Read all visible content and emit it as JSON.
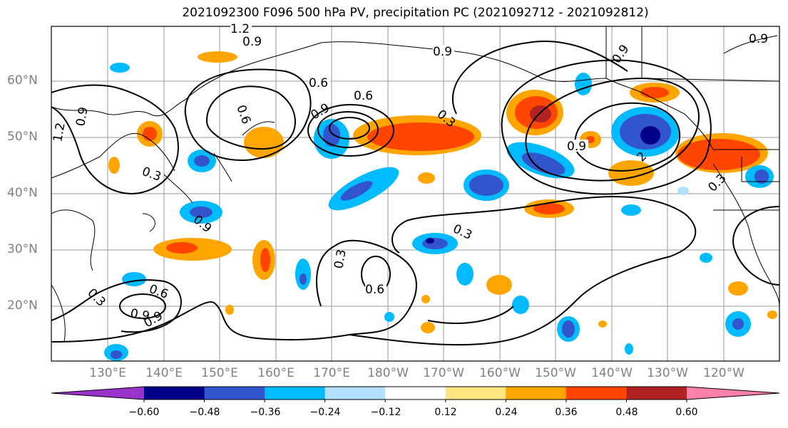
{
  "title": "2021092300 F096 500 hPa PV, precipitation PC (2021092712 - 2021092812)",
  "lat_labels": [
    "60°N",
    "50°N",
    "40°N",
    "30°N",
    "20°N"
  ],
  "lon_labels": [
    "130°E",
    "140°E",
    "150°E",
    "160°E",
    "170°E",
    "180°W",
    "170°W",
    "160°W",
    "150°W",
    "140°W",
    "130°W",
    "120°W"
  ],
  "contour_labels": [
    "1.2",
    "0.9",
    "0.9",
    "0.6",
    "0.6",
    "0.9",
    "0.6",
    "0.3",
    "0.3",
    "0.9",
    "1.2",
    "0.9",
    "0.3",
    "0.6",
    "0.3",
    "0.6",
    "0.9",
    "0.3",
    "0.9",
    "0.9",
    "2",
    "0.9",
    "0.9",
    "0.3"
  ],
  "colorbar": {
    "colors": [
      "#9933cc",
      "#000088",
      "#3355cc",
      "#00bbff",
      "#b3e0ff",
      "#ffffff",
      "#ffe680",
      "#ffa500",
      "#ff4500",
      "#b22222",
      "#ff80aa"
    ],
    "ticks": [
      "−0.60",
      "−0.48",
      "−0.36",
      "−0.24",
      "−0.12",
      "0.12",
      "0.24",
      "0.36",
      "0.48",
      "0.60"
    ]
  }
}
